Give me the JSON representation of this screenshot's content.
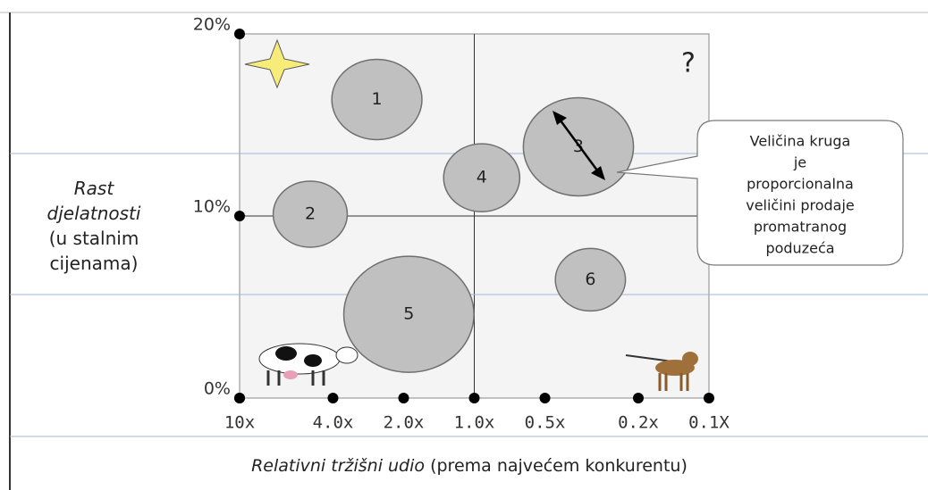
{
  "chart_data": {
    "type": "bubble",
    "labels": [
      "1",
      "2",
      "3",
      "4",
      "5",
      "6"
    ],
    "x": [
      2.6,
      5.0,
      0.36,
      0.93,
      1.9,
      0.32
    ],
    "values": [
      16.4,
      10.1,
      13.8,
      12.1,
      4.6,
      6.5
    ],
    "sizes": [
      45,
      37,
      55,
      38,
      65,
      35
    ],
    "color": "#c0c0c0",
    "x_log": true,
    "x_reversed": true,
    "xlim": [
      10,
      0.1
    ],
    "xticks": [
      {
        "value": 10,
        "label": "10x"
      },
      {
        "value": 4,
        "label": "4.0x"
      },
      {
        "value": 2,
        "label": "2.0x"
      },
      {
        "value": 1,
        "label": "1.0x"
      },
      {
        "value": 0.5,
        "label": "0.5x"
      },
      {
        "value": 0.2,
        "label": "0.2x"
      },
      {
        "value": 0.1,
        "label": "0.1X"
      }
    ],
    "ylim": [
      0,
      20
    ],
    "yticks": [
      {
        "value": 0,
        "label": "0%"
      },
      {
        "value": 10,
        "label": "10%"
      },
      {
        "value": 20,
        "label": "20%"
      }
    ],
    "quadrant_split": {
      "x": 1,
      "y": 10
    },
    "y_label": {
      "italic": [
        "Rast",
        "djelatnosti"
      ],
      "plain": [
        "(u stalnim",
        "cijenama)"
      ]
    },
    "x_label": {
      "italic": "Relativni tržišni udio",
      "plain": " (prema najvećem konkurentu)"
    },
    "annotations": {
      "question": "?",
      "callout": [
        "Veličina kruga",
        "je",
        "proporcionalna",
        "veličini prodaje",
        "promatranog",
        "poduzeća"
      ]
    }
  }
}
